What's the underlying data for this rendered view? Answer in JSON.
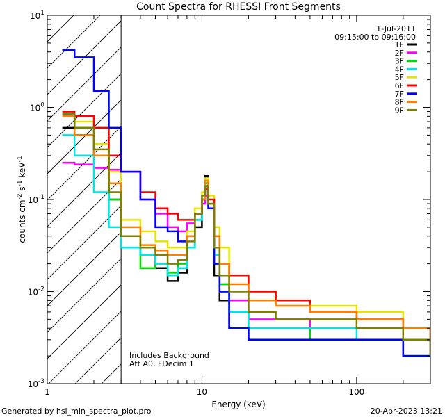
{
  "chart_data": {
    "type": "line",
    "title": "Count Spectra for RHESSI Front Segments",
    "xlabel": "Energy (keV)",
    "ylabel_parts": [
      "counts cm",
      "-2",
      " s",
      "-1",
      " keV",
      "-1"
    ],
    "xscale": "log",
    "yscale": "log",
    "xlim": [
      1,
      300
    ],
    "ylim": [
      0.001,
      10
    ],
    "x_ticks": [
      {
        "value": 1,
        "label": "1"
      },
      {
        "value": 10,
        "label": "10"
      },
      {
        "value": 100,
        "label": "100"
      }
    ],
    "y_ticks": [
      {
        "value": 0.001,
        "base": "10",
        "exp": "-3"
      },
      {
        "value": 0.01,
        "base": "10",
        "exp": "-2"
      },
      {
        "value": 0.1,
        "base": "10",
        "exp": "-1"
      },
      {
        "value": 1,
        "base": "10",
        "exp": "0"
      },
      {
        "value": 10,
        "base": "10",
        "exp": "1"
      }
    ],
    "hatched_region": {
      "x_start": 1,
      "x_end": 3
    },
    "annotations": {
      "date": "1-Jul-2011",
      "time_range": "09:15:00 to 09:16:00",
      "note_line1": "Includes Background",
      "note_line2": "Att A0, FDecim 1"
    },
    "series": [
      {
        "name": "1F",
        "color": "#000000",
        "points": [
          [
            1.25,
            0.6
          ],
          [
            1.5,
            0.5
          ],
          [
            2,
            0.3
          ],
          [
            2.5,
            0.1
          ],
          [
            3,
            0.03
          ],
          [
            4,
            0.025
          ],
          [
            5,
            0.018
          ],
          [
            6,
            0.013
          ],
          [
            7,
            0.016
          ],
          [
            8,
            0.03
          ],
          [
            9,
            0.05
          ],
          [
            10,
            0.1
          ],
          [
            10.5,
            0.18
          ],
          [
            11,
            0.08
          ],
          [
            12,
            0.015
          ],
          [
            13,
            0.008
          ],
          [
            15,
            0.004
          ],
          [
            20,
            0.003
          ],
          [
            30,
            0.003
          ],
          [
            50,
            0.003
          ],
          [
            100,
            0.003
          ],
          [
            200,
            0.003
          ],
          [
            300,
            0.002
          ]
        ]
      },
      {
        "name": "2F",
        "color": "#ff00ff",
        "points": [
          [
            1.25,
            0.25
          ],
          [
            1.5,
            0.24
          ],
          [
            2,
            0.22
          ],
          [
            2.5,
            0.21
          ],
          [
            3,
            0.2
          ],
          [
            4,
            0.1
          ],
          [
            5,
            0.07
          ],
          [
            6,
            0.05
          ],
          [
            7,
            0.045
          ],
          [
            8,
            0.055
          ],
          [
            9,
            0.07
          ],
          [
            10,
            0.09
          ],
          [
            10.5,
            0.11
          ],
          [
            11,
            0.08
          ],
          [
            12,
            0.03
          ],
          [
            13,
            0.012
          ],
          [
            15,
            0.008
          ],
          [
            20,
            0.005
          ],
          [
            30,
            0.005
          ],
          [
            50,
            0.004
          ],
          [
            100,
            0.004
          ],
          [
            200,
            0.004
          ],
          [
            300,
            0.003
          ]
        ]
      },
      {
        "name": "3F",
        "color": "#00dd00",
        "points": [
          [
            1.25,
            0.8
          ],
          [
            1.5,
            0.6
          ],
          [
            2,
            0.3
          ],
          [
            2.5,
            0.1
          ],
          [
            3,
            0.04
          ],
          [
            4,
            0.018
          ],
          [
            5,
            0.02
          ],
          [
            6,
            0.016
          ],
          [
            7,
            0.02
          ],
          [
            8,
            0.03
          ],
          [
            9,
            0.06
          ],
          [
            10,
            0.1
          ],
          [
            10.5,
            0.15
          ],
          [
            11,
            0.09
          ],
          [
            12,
            0.03
          ],
          [
            13,
            0.012
          ],
          [
            15,
            0.006
          ],
          [
            20,
            0.004
          ],
          [
            30,
            0.004
          ],
          [
            50,
            0.003
          ],
          [
            100,
            0.003
          ],
          [
            200,
            0.002
          ],
          [
            300,
            0.002
          ]
        ]
      },
      {
        "name": "4F",
        "color": "#00e5e5",
        "points": [
          [
            1.25,
            0.5
          ],
          [
            1.5,
            0.3
          ],
          [
            2,
            0.12
          ],
          [
            2.5,
            0.05
          ],
          [
            3,
            0.03
          ],
          [
            4,
            0.025
          ],
          [
            5,
            0.02
          ],
          [
            6,
            0.015
          ],
          [
            7,
            0.018
          ],
          [
            8,
            0.03
          ],
          [
            9,
            0.06
          ],
          [
            10,
            0.1
          ],
          [
            10.5,
            0.16
          ],
          [
            11,
            0.08
          ],
          [
            12,
            0.025
          ],
          [
            13,
            0.01
          ],
          [
            15,
            0.006
          ],
          [
            20,
            0.004
          ],
          [
            30,
            0.004
          ],
          [
            50,
            0.004
          ],
          [
            100,
            0.003
          ],
          [
            200,
            0.002
          ],
          [
            300,
            0.002
          ]
        ]
      },
      {
        "name": "5F",
        "color": "#e5e500",
        "points": [
          [
            1.25,
            0.85
          ],
          [
            1.5,
            0.7
          ],
          [
            2,
            0.4
          ],
          [
            2.5,
            0.2
          ],
          [
            3,
            0.06
          ],
          [
            4,
            0.045
          ],
          [
            5,
            0.035
          ],
          [
            6,
            0.03
          ],
          [
            7,
            0.03
          ],
          [
            8,
            0.045
          ],
          [
            9,
            0.08
          ],
          [
            10,
            0.12
          ],
          [
            10.5,
            0.17
          ],
          [
            11,
            0.11
          ],
          [
            12,
            0.05
          ],
          [
            13,
            0.03
          ],
          [
            15,
            0.015
          ],
          [
            20,
            0.01
          ],
          [
            30,
            0.008
          ],
          [
            50,
            0.007
          ],
          [
            100,
            0.006
          ],
          [
            200,
            0.004
          ],
          [
            300,
            0.003
          ]
        ]
      },
      {
        "name": "6F",
        "color": "#ff0000",
        "points": [
          [
            1.25,
            0.9
          ],
          [
            1.5,
            0.8
          ],
          [
            2,
            0.6
          ],
          [
            2.5,
            0.3
          ],
          [
            3,
            0.2
          ],
          [
            4,
            0.12
          ],
          [
            5,
            0.08
          ],
          [
            6,
            0.07
          ],
          [
            7,
            0.06
          ],
          [
            8,
            0.06
          ],
          [
            9,
            0.07
          ],
          [
            10,
            0.1
          ],
          [
            10.5,
            0.13
          ],
          [
            11,
            0.1
          ],
          [
            12,
            0.04
          ],
          [
            13,
            0.02
          ],
          [
            15,
            0.015
          ],
          [
            20,
            0.01
          ],
          [
            30,
            0.008
          ],
          [
            50,
            0.006
          ],
          [
            100,
            0.005
          ],
          [
            200,
            0.004
          ],
          [
            300,
            0.003
          ]
        ]
      },
      {
        "name": "7F",
        "color": "#0000ff",
        "points": [
          [
            1.25,
            4.2
          ],
          [
            1.5,
            3.5
          ],
          [
            2,
            1.5
          ],
          [
            2.5,
            0.6
          ],
          [
            3,
            0.2
          ],
          [
            4,
            0.1
          ],
          [
            5,
            0.05
          ],
          [
            6,
            0.045
          ],
          [
            7,
            0.035
          ],
          [
            8,
            0.04
          ],
          [
            9,
            0.07
          ],
          [
            10,
            0.1
          ],
          [
            10.5,
            0.14
          ],
          [
            11,
            0.08
          ],
          [
            12,
            0.02
          ],
          [
            13,
            0.01
          ],
          [
            15,
            0.004
          ],
          [
            20,
            0.003
          ],
          [
            30,
            0.003
          ],
          [
            50,
            0.003
          ],
          [
            100,
            0.003
          ],
          [
            200,
            0.002
          ],
          [
            300,
            0.002
          ]
        ]
      },
      {
        "name": "8F",
        "color": "#ff8000",
        "points": [
          [
            1.25,
            0.8
          ],
          [
            1.5,
            0.5
          ],
          [
            2,
            0.3
          ],
          [
            2.5,
            0.15
          ],
          [
            3,
            0.05
          ],
          [
            4,
            0.032
          ],
          [
            5,
            0.028
          ],
          [
            6,
            0.025
          ],
          [
            7,
            0.025
          ],
          [
            8,
            0.04
          ],
          [
            9,
            0.07
          ],
          [
            10,
            0.1
          ],
          [
            10.5,
            0.16
          ],
          [
            11,
            0.09
          ],
          [
            12,
            0.04
          ],
          [
            13,
            0.02
          ],
          [
            15,
            0.012
          ],
          [
            20,
            0.008
          ],
          [
            30,
            0.007
          ],
          [
            50,
            0.006
          ],
          [
            100,
            0.005
          ],
          [
            200,
            0.004
          ],
          [
            300,
            0.003
          ]
        ]
      },
      {
        "name": "9F",
        "color": "#808000",
        "points": [
          [
            1.25,
            0.85
          ],
          [
            1.5,
            0.6
          ],
          [
            2,
            0.35
          ],
          [
            2.5,
            0.12
          ],
          [
            3,
            0.04
          ],
          [
            4,
            0.03
          ],
          [
            5,
            0.025
          ],
          [
            6,
            0.02
          ],
          [
            7,
            0.022
          ],
          [
            8,
            0.035
          ],
          [
            9,
            0.07
          ],
          [
            10,
            0.11
          ],
          [
            10.5,
            0.14
          ],
          [
            11,
            0.09
          ],
          [
            12,
            0.03
          ],
          [
            13,
            0.015
          ],
          [
            15,
            0.01
          ],
          [
            20,
            0.006
          ],
          [
            30,
            0.005
          ],
          [
            50,
            0.005
          ],
          [
            100,
            0.004
          ],
          [
            200,
            0.003
          ],
          [
            300,
            0.002
          ]
        ]
      }
    ]
  },
  "footer": {
    "left": "Generated by hsi_min_spectra_plot.pro",
    "right": "20-Apr-2023 13:21"
  }
}
